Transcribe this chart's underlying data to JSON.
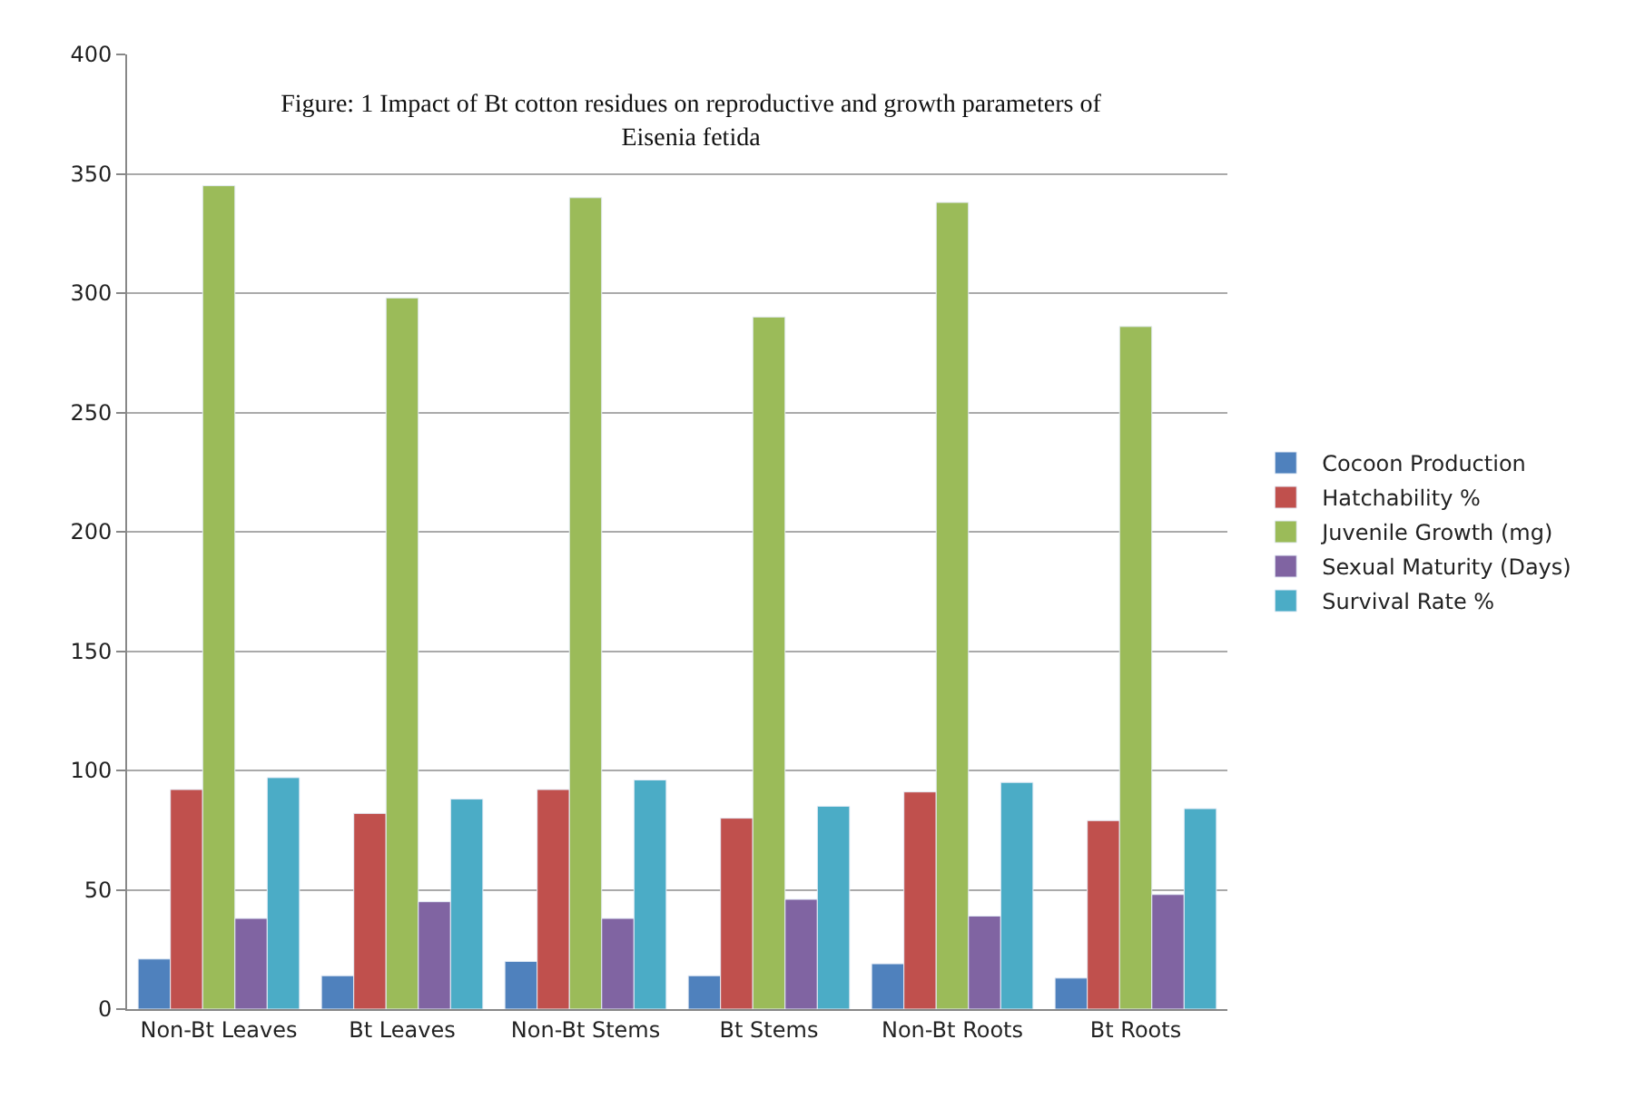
{
  "chart_data": {
    "type": "bar",
    "title": "Figure: 1 Impact of Bt cotton residues on reproductive and growth parameters of Eisenia fetida",
    "categories": [
      "Non-Bt Leaves",
      "Bt Leaves",
      "Non-Bt Stems",
      "Bt Stems",
      "Non-Bt Roots",
      "Bt Roots"
    ],
    "series": [
      {
        "name": "Cocoon Production",
        "color": "#4f81bd",
        "values": [
          21,
          14,
          20,
          14,
          19,
          13
        ]
      },
      {
        "name": "Hatchability %",
        "color": "#c0504d",
        "values": [
          92,
          82,
          92,
          80,
          91,
          79
        ]
      },
      {
        "name": "Juvenile Growth (mg)",
        "color": "#9bbb59",
        "values": [
          345,
          298,
          340,
          290,
          338,
          286
        ]
      },
      {
        "name": "Sexual Maturity (Days)",
        "color": "#8064a2",
        "values": [
          38,
          45,
          38,
          46,
          39,
          48
        ]
      },
      {
        "name": "Survival Rate %",
        "color": "#4bacc6",
        "values": [
          97,
          88,
          96,
          85,
          95,
          84
        ]
      }
    ],
    "ylim": [
      0,
      400
    ],
    "yticks": [
      0,
      50,
      100,
      150,
      200,
      250,
      300,
      350,
      400
    ],
    "grid": "y",
    "legend": "right"
  }
}
